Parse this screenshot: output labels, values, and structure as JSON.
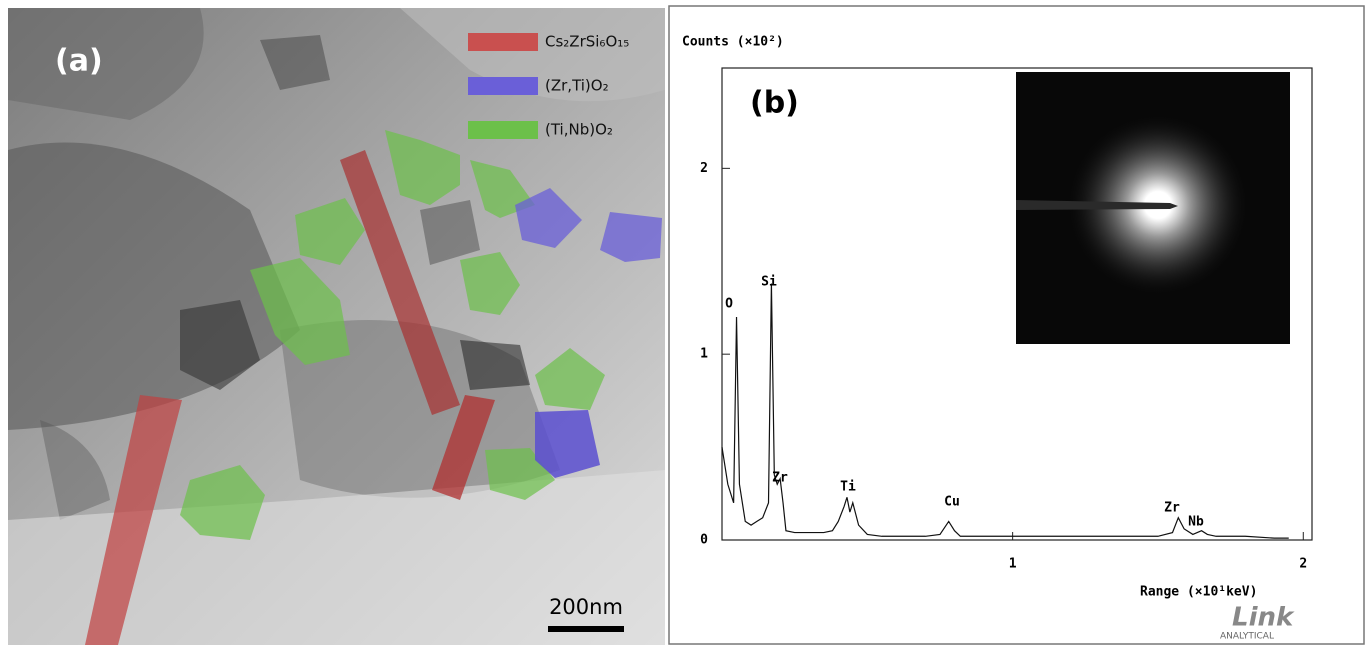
{
  "panel_a": {
    "label": "(a)",
    "scale_bar": "200nm",
    "legend": [
      {
        "name": "Cs₂ZrSi₆O₁₅",
        "color": "#c9504f"
      },
      {
        "name": "(Zr,Ti)O₂",
        "color": "#6a5fd8"
      },
      {
        "name": "(Ti,Nb)O₂",
        "color": "#6cc04a"
      }
    ]
  },
  "panel_b": {
    "label": "(b)",
    "logo": "Link",
    "logo_sub": "ANALYTICAL"
  },
  "chart_data": {
    "type": "line",
    "title": "Counts (×10²)",
    "x_label": "Range (×10¹keV)",
    "xlim": [
      0,
      2.03
    ],
    "ylim": [
      0,
      2.54
    ],
    "xticks": [
      1,
      2
    ],
    "yticks": [
      0,
      1,
      2
    ],
    "color": "#111111",
    "x": [
      0.0,
      0.02,
      0.04,
      0.05,
      0.06,
      0.08,
      0.1,
      0.12,
      0.14,
      0.16,
      0.17,
      0.18,
      0.19,
      0.2,
      0.21,
      0.22,
      0.25,
      0.3,
      0.35,
      0.38,
      0.4,
      0.42,
      0.43,
      0.44,
      0.45,
      0.47,
      0.5,
      0.55,
      0.6,
      0.7,
      0.75,
      0.78,
      0.8,
      0.82,
      0.85,
      0.9,
      1.0,
      1.1,
      1.2,
      1.3,
      1.4,
      1.5,
      1.55,
      1.57,
      1.59,
      1.62,
      1.65,
      1.67,
      1.7,
      1.8,
      1.9,
      1.95
    ],
    "values": [
      0.5,
      0.3,
      0.2,
      1.2,
      0.3,
      0.1,
      0.08,
      0.1,
      0.12,
      0.2,
      1.38,
      0.35,
      0.3,
      0.33,
      0.2,
      0.05,
      0.04,
      0.04,
      0.04,
      0.05,
      0.1,
      0.18,
      0.23,
      0.15,
      0.2,
      0.08,
      0.03,
      0.02,
      0.02,
      0.02,
      0.03,
      0.1,
      0.05,
      0.02,
      0.02,
      0.02,
      0.02,
      0.02,
      0.02,
      0.02,
      0.02,
      0.02,
      0.04,
      0.12,
      0.06,
      0.03,
      0.05,
      0.03,
      0.02,
      0.02,
      0.01,
      0.01
    ],
    "annotations": [
      "O",
      "Si",
      "Zr",
      "Ti",
      "Cu",
      "Zr",
      "Nb"
    ]
  }
}
